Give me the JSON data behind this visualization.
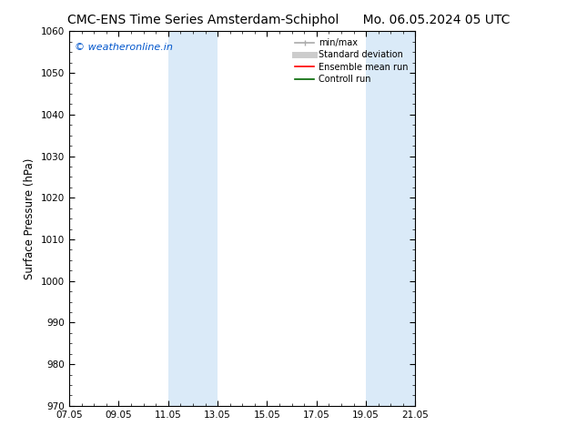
{
  "title_left": "CMC-ENS Time Series Amsterdam-Schiphol",
  "title_right": "Mo. 06.05.2024 05 UTC",
  "ylabel": "Surface Pressure (hPa)",
  "ylim": [
    970,
    1060
  ],
  "yticks": [
    970,
    980,
    990,
    1000,
    1010,
    1020,
    1030,
    1040,
    1050,
    1060
  ],
  "xlim": [
    0,
    14
  ],
  "xtick_labels": [
    "07.05",
    "09.05",
    "11.05",
    "13.05",
    "15.05",
    "17.05",
    "19.05",
    "21.05"
  ],
  "xtick_positions": [
    0,
    2,
    4,
    6,
    8,
    10,
    12,
    14
  ],
  "shaded_regions": [
    {
      "xstart": 4.0,
      "xend": 6.0
    },
    {
      "xstart": 12.0,
      "xend": 14.0
    }
  ],
  "shaded_color": "#daeaf8",
  "watermark_text": "© weatheronline.in",
  "watermark_color": "#0055cc",
  "legend_items": [
    {
      "label": "min/max",
      "color": "#aaaaaa",
      "lw": 1.2,
      "style": "line_with_caps"
    },
    {
      "label": "Standard deviation",
      "color": "#cccccc",
      "lw": 5,
      "style": "line"
    },
    {
      "label": "Ensemble mean run",
      "color": "#ff0000",
      "lw": 1.2,
      "style": "line"
    },
    {
      "label": "Controll run",
      "color": "#006600",
      "lw": 1.2,
      "style": "line"
    }
  ],
  "bg_color": "#ffffff",
  "title_fontsize": 10,
  "tick_fontsize": 7.5,
  "ylabel_fontsize": 8.5,
  "watermark_fontsize": 8,
  "legend_fontsize": 7
}
